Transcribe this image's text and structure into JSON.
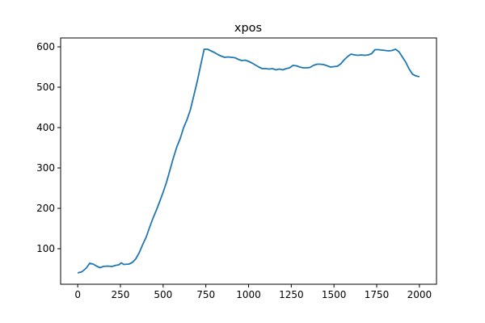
{
  "chart_data": {
    "type": "line",
    "title": "xpos",
    "x": [
      0,
      25,
      50,
      60,
      70,
      90,
      110,
      130,
      150,
      175,
      200,
      225,
      240,
      255,
      270,
      300,
      320,
      340,
      360,
      380,
      400,
      420,
      440,
      460,
      480,
      500,
      520,
      540,
      560,
      580,
      600,
      620,
      640,
      660,
      680,
      700,
      720,
      740,
      760,
      780,
      800,
      820,
      840,
      860,
      880,
      900,
      920,
      940,
      960,
      980,
      1000,
      1020,
      1040,
      1060,
      1080,
      1100,
      1120,
      1140,
      1160,
      1180,
      1200,
      1220,
      1240,
      1260,
      1280,
      1300,
      1320,
      1340,
      1360,
      1380,
      1400,
      1420,
      1440,
      1460,
      1480,
      1500,
      1520,
      1540,
      1560,
      1580,
      1600,
      1620,
      1640,
      1660,
      1680,
      1700,
      1720,
      1740,
      1760,
      1780,
      1800,
      1820,
      1840,
      1860,
      1880,
      1900,
      1920,
      1940,
      1960,
      1980,
      2000
    ],
    "series": [
      {
        "color": "#1f77b4",
        "values": [
          40,
          43,
          52,
          58,
          64,
          62,
          57,
          53,
          56,
          57,
          56,
          59,
          60,
          65,
          61,
          62,
          66,
          75,
          90,
          110,
          128,
          152,
          175,
          195,
          217,
          240,
          265,
          295,
          325,
          352,
          373,
          400,
          420,
          445,
          480,
          515,
          555,
          594,
          594,
          590,
          586,
          581,
          577,
          574,
          575,
          574,
          573,
          569,
          566,
          567,
          564,
          560,
          555,
          550,
          546,
          546,
          545,
          546,
          543,
          545,
          543,
          546,
          548,
          554,
          553,
          550,
          548,
          548,
          549,
          554,
          557,
          557,
          556,
          553,
          550,
          551,
          552,
          558,
          568,
          576,
          582,
          580,
          579,
          580,
          579,
          580,
          583,
          593,
          593,
          592,
          591,
          590,
          591,
          594,
          588,
          575,
          562,
          545,
          532,
          528,
          526
        ]
      }
    ],
    "xlim": [
      -100,
      2100
    ],
    "ylim": [
      12,
      622
    ],
    "xticks": [
      0,
      250,
      500,
      750,
      1000,
      1250,
      1500,
      1750,
      2000
    ],
    "yticks": [
      100,
      200,
      300,
      400,
      500,
      600
    ]
  }
}
